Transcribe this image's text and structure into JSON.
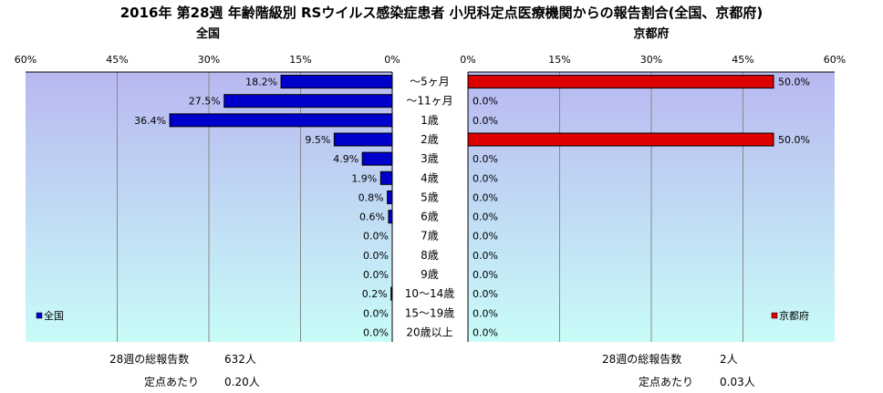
{
  "title": "2016年 第28週 年齢階級別 RSウイルス感染症患者 小児科定点医療機関からの報告割合(全国、京都府)",
  "chart_data": {
    "type": "bar",
    "orientation": "horizontal",
    "categories": [
      "～5ヶ月",
      "～11ヶ月",
      "1歳",
      "2歳",
      "3歳",
      "4歳",
      "5歳",
      "6歳",
      "7歳",
      "8歳",
      "9歳",
      "10～14歳",
      "15～19歳",
      "20歳以上"
    ],
    "xlim": [
      0,
      60
    ],
    "xticks": [
      "0%",
      "15%",
      "30%",
      "45%",
      "60%"
    ],
    "grid": true,
    "series": [
      {
        "name": "全国",
        "panel_title": "全国",
        "color": "#0000cc",
        "values": [
          18.2,
          27.5,
          36.4,
          9.5,
          4.9,
          1.9,
          0.8,
          0.6,
          0.0,
          0.0,
          0.0,
          0.2,
          0.0,
          0.0
        ],
        "labels": [
          "18.2%",
          "27.5%",
          "36.4%",
          "9.5%",
          "4.9%",
          "1.9%",
          "0.8%",
          "0.6%",
          "0.0%",
          "0.0%",
          "0.0%",
          "0.2%",
          "0.0%",
          "0.0%"
        ],
        "legend_position": "bottom-left"
      },
      {
        "name": "京都府",
        "panel_title": "京都府",
        "color": "#dd0000",
        "values": [
          50.0,
          0.0,
          0.0,
          50.0,
          0.0,
          0.0,
          0.0,
          0.0,
          0.0,
          0.0,
          0.0,
          0.0,
          0.0,
          0.0
        ],
        "labels": [
          "50.0%",
          "0.0%",
          "0.0%",
          "50.0%",
          "0.0%",
          "0.0%",
          "0.0%",
          "0.0%",
          "0.0%",
          "0.0%",
          "0.0%",
          "0.0%",
          "0.0%",
          "0.0%"
        ],
        "legend_position": "bottom-right"
      }
    ]
  },
  "stats": {
    "left": {
      "total_label": "28週の総報告数",
      "total_value": "632人",
      "per_label": "定点あたり",
      "per_value": "0.20人"
    },
    "right": {
      "total_label": "28週の総報告数",
      "total_value": "2人",
      "per_label": "定点あたり",
      "per_value": "0.03人"
    }
  },
  "colors": {
    "gradient_top": "#b8b8f0",
    "gradient_bottom": "#c8fcf8",
    "gridline": "#888888"
  }
}
